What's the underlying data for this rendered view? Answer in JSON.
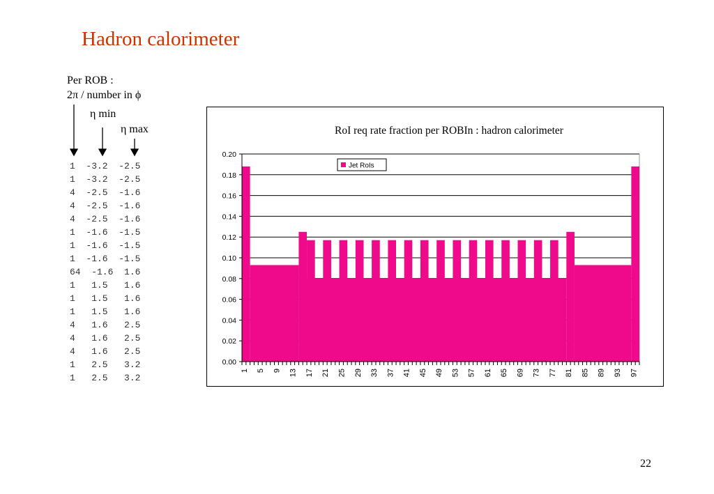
{
  "slide": {
    "title": "Hadron calorimeter",
    "per_rob_line1": "Per ROB :",
    "per_rob_line2": "2π / number in ϕ",
    "eta_min_label": "η min",
    "eta_max_label": "η max",
    "page_number": "22"
  },
  "rob_table": [
    "1  -3.2  -2.5",
    "1  -3.2  -2.5",
    "4  -2.5  -1.6",
    "4  -2.5  -1.6",
    "4  -2.5  -1.6",
    "1  -1.6  -1.5",
    "1  -1.6  -1.5",
    "1  -1.6  -1.5",
    "64  -1.6  1.6",
    "1   1.5   1.6",
    "1   1.5   1.6",
    "1   1.5   1.6",
    "4   1.6   2.5",
    "4   1.6   2.5",
    "4   1.6   2.5",
    "1   2.5   3.2",
    "1   2.5   3.2"
  ],
  "chart_data": {
    "type": "bar",
    "title": "RoI req rate fraction per ROBIn : hadron calorimeter",
    "xlabel": "",
    "ylabel": "",
    "ylim": [
      0,
      0.2
    ],
    "yticks": [
      "0.00",
      "0.02",
      "0.04",
      "0.06",
      "0.08",
      "0.10",
      "0.12",
      "0.14",
      "0.16",
      "0.18",
      "0.20"
    ],
    "xtick_labels": [
      "1",
      "5",
      "9",
      "13",
      "17",
      "21",
      "25",
      "29",
      "33",
      "37",
      "41",
      "45",
      "49",
      "53",
      "57",
      "61",
      "65",
      "69",
      "73",
      "77",
      "81",
      "85",
      "89",
      "93",
      "97"
    ],
    "grid": true,
    "legend_position": "top-left",
    "series": [
      {
        "name": "Jet RoIs",
        "color": "#ee0a8a",
        "segments": [
          {
            "from": 1,
            "to": 2,
            "value": 0.188
          },
          {
            "from": 3,
            "to": 14,
            "value": 0.093
          },
          {
            "from": 15,
            "to": 16,
            "value": 0.125
          },
          {
            "from": 17,
            "to": 80,
            "value": 0.08,
            "peak_value": 0.117,
            "period": 4
          },
          {
            "from": 81,
            "to": 82,
            "value": 0.125
          },
          {
            "from": 83,
            "to": 96,
            "value": 0.093
          },
          {
            "from": 97,
            "to": 98,
            "value": 0.188
          }
        ]
      }
    ]
  }
}
